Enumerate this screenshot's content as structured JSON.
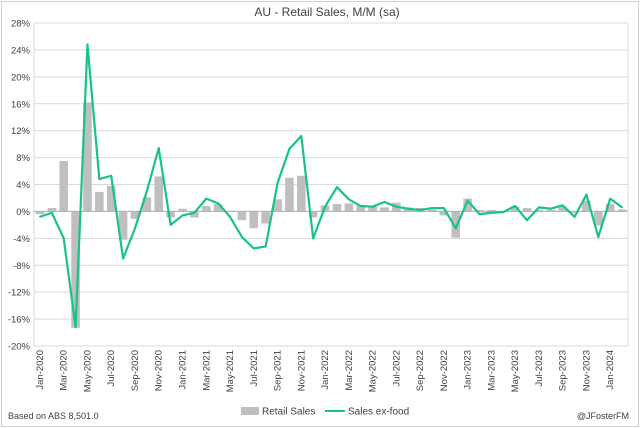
{
  "chart_data": {
    "type": "bar",
    "title": "AU - Retail Sales, M/M (sa)",
    "xlabel": "",
    "ylabel": "",
    "ylim": [
      -20,
      28
    ],
    "yticks": [
      -20,
      -16,
      -12,
      -8,
      -4,
      0,
      4,
      8,
      12,
      16,
      20,
      24,
      28
    ],
    "ytick_labels": [
      "-20%",
      "-16%",
      "-12%",
      "-8%",
      "-4%",
      "0%",
      "4%",
      "8%",
      "12%",
      "16%",
      "20%",
      "24%",
      "28%"
    ],
    "grid": true,
    "legend_position": "bottom",
    "categories": [
      "Jan-2020",
      "Feb-2020",
      "Mar-2020",
      "Apr-2020",
      "May-2020",
      "Jun-2020",
      "Jul-2020",
      "Aug-2020",
      "Sep-2020",
      "Oct-2020",
      "Nov-2020",
      "Dec-2020",
      "Jan-2021",
      "Feb-2021",
      "Mar-2021",
      "Apr-2021",
      "May-2021",
      "Jun-2021",
      "Jul-2021",
      "Aug-2021",
      "Sep-2021",
      "Oct-2021",
      "Nov-2021",
      "Dec-2021",
      "Jan-2022",
      "Feb-2022",
      "Mar-2022",
      "Apr-2022",
      "May-2022",
      "Jun-2022",
      "Jul-2022",
      "Aug-2022",
      "Sep-2022",
      "Oct-2022",
      "Nov-2022",
      "Dec-2022",
      "Jan-2023",
      "Feb-2023",
      "Mar-2023",
      "Apr-2023",
      "May-2023",
      "Jun-2023",
      "Jul-2023",
      "Aug-2023",
      "Sep-2023",
      "Oct-2023",
      "Nov-2023",
      "Dec-2023",
      "Jan-2024",
      "Feb-2024"
    ],
    "xtick_labels": [
      "Jan-2020",
      "Mar-2020",
      "May-2020",
      "Jul-2020",
      "Sep-2020",
      "Nov-2020",
      "Jan-2021",
      "Mar-2021",
      "May-2021",
      "Jul-2021",
      "Sep-2021",
      "Nov-2021",
      "Jan-2022",
      "Mar-2022",
      "May-2022",
      "Jul-2022",
      "Sep-2022",
      "Nov-2022",
      "Jan-2023",
      "Mar-2023",
      "May-2023",
      "Jul-2023",
      "Sep-2023",
      "Nov-2023",
      "Jan-2024"
    ],
    "series": [
      {
        "name": "Retail Sales",
        "type": "bar",
        "color": "#bfbfbf",
        "values": [
          -0.4,
          0.5,
          7.5,
          -17.3,
          16.2,
          2.9,
          3.8,
          -4.2,
          -1.1,
          2.1,
          5.2,
          -0.9,
          0.4,
          -0.9,
          0.8,
          1.1,
          0.1,
          -1.3,
          -2.5,
          -1.8,
          1.8,
          5.0,
          5.3,
          -0.9,
          0.9,
          1.1,
          1.2,
          0.9,
          0.8,
          0.6,
          1.3,
          0.6,
          0.5,
          0.3,
          -0.6,
          -3.9,
          1.9,
          0.2,
          0.2,
          0.0,
          0.7,
          0.5,
          0.2,
          0.2,
          0.7,
          -0.2,
          1.6,
          -2.1,
          1.1,
          0.3
        ]
      },
      {
        "name": "Sales ex-food",
        "type": "line",
        "color": "#17c28b",
        "values": [
          -0.8,
          -0.2,
          -4.0,
          -17.2,
          24.8,
          4.8,
          5.3,
          -7.0,
          -2.5,
          3.0,
          9.4,
          -2.0,
          -0.6,
          -0.2,
          1.9,
          1.2,
          -0.8,
          -3.8,
          -5.5,
          -5.2,
          4.2,
          9.3,
          11.2,
          -4.0,
          0.7,
          3.6,
          1.8,
          0.8,
          0.7,
          1.4,
          0.7,
          0.4,
          0.2,
          0.5,
          0.5,
          -2.5,
          1.6,
          -0.4,
          -0.2,
          -0.1,
          0.8,
          -1.3,
          0.6,
          0.4,
          0.9,
          -0.8,
          2.5,
          -3.8,
          1.9,
          0.6
        ]
      }
    ]
  },
  "footer": {
    "source": "Based on ABS 8,501.0",
    "credit": "@JFosterFM"
  }
}
